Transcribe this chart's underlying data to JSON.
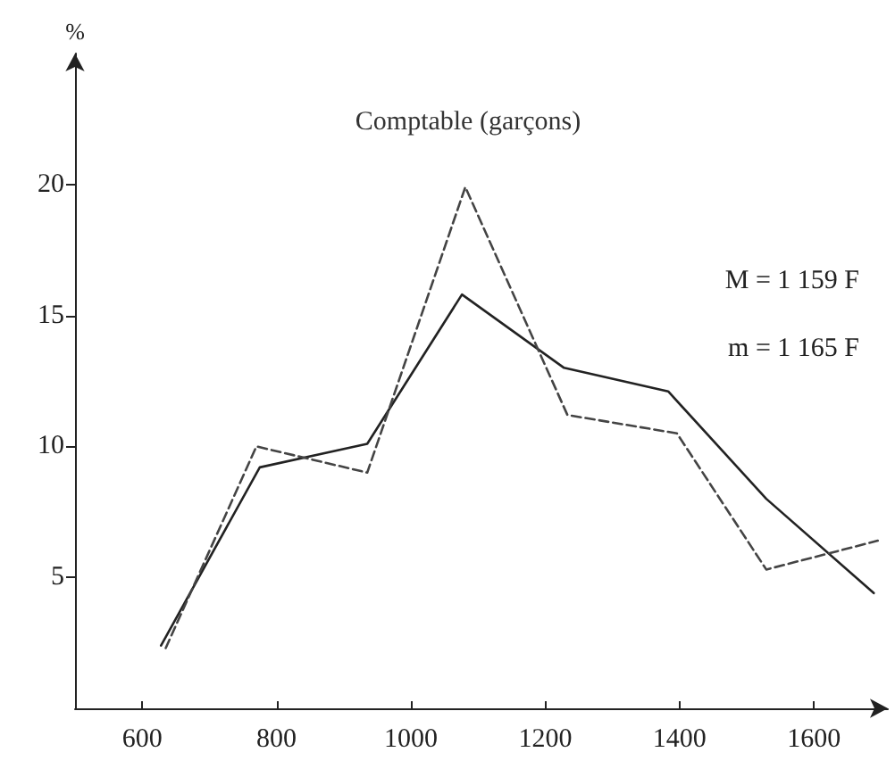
{
  "chart_data": {
    "type": "line",
    "title": "Comptable (garçons)",
    "ylabel": "%",
    "annotations": [
      "M = 1 159 F",
      "m = 1 165 F"
    ],
    "xlim": [
      500,
      1710
    ],
    "xticks": [
      600,
      800,
      1000,
      1200,
      1400,
      1600
    ],
    "ylim": [
      0,
      25
    ],
    "yticks": [
      5,
      10,
      15,
      20
    ],
    "grid": false,
    "marker": "none",
    "series": [
      {
        "color": "#222222",
        "line_style": "solid",
        "x": [
          628,
          775,
          935,
          1076,
          1228,
          1383,
          1529,
          1689
        ],
        "values": [
          2.4,
          9.2,
          10.1,
          15.8,
          13.0,
          12.1,
          8.0,
          4.4
        ]
      },
      {
        "color": "#444444",
        "line_style": "dashed",
        "x": [
          635,
          770,
          935,
          1081,
          1233,
          1396,
          1529,
          1695
        ],
        "values": [
          2.3,
          10.0,
          9.0,
          19.9,
          11.2,
          10.5,
          5.3,
          6.4
        ]
      }
    ]
  }
}
